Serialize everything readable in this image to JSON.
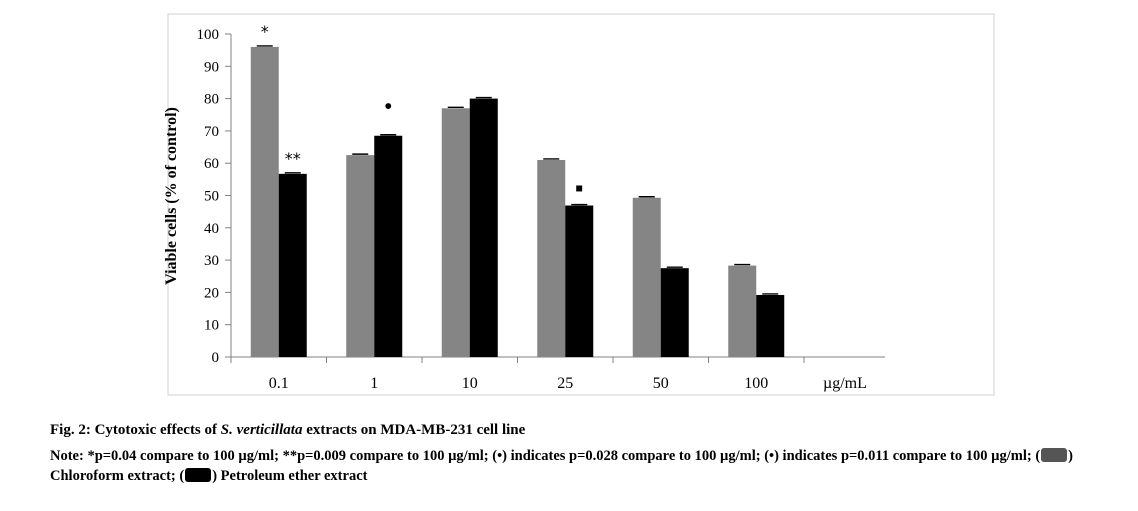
{
  "chart_data": {
    "type": "bar",
    "categories": [
      "0.1",
      "1",
      "10",
      "25",
      "50",
      "100"
    ],
    "series": [
      {
        "name": "Chloroform extract",
        "color": "#858585",
        "values": [
          96,
          62.5,
          77,
          61,
          49.3,
          28.3
        ]
      },
      {
        "name": "Petroleum ether extract",
        "color": "#000000",
        "values": [
          56.7,
          68.5,
          80,
          46.9,
          27.5,
          19.2
        ]
      }
    ],
    "ylabel": "Viable cells (% of control)",
    "xunit": "µg/mL",
    "ylim": [
      0,
      100
    ],
    "yticks": [
      0,
      10,
      20,
      30,
      40,
      50,
      60,
      70,
      80,
      90,
      100
    ],
    "grid": false,
    "annotations": [
      {
        "category": "0.1",
        "series": 0,
        "text": "*"
      },
      {
        "category": "0.1",
        "series": 1,
        "text": "**"
      },
      {
        "category": "1",
        "series": 1,
        "text": "•"
      },
      {
        "category": "25",
        "series": 1,
        "text": "▪"
      }
    ]
  },
  "caption": {
    "label": "Fig. 2:",
    "pre": "Cytotoxic effects of",
    "italic": "S. verticillata",
    "post": "extracts on MDA-MB-231 cell line"
  },
  "note": {
    "part1": "Note: *p=0.04 compare to 100 µg/ml; **p=0.009 compare to 100 µg/ml; (•) indicates p=0.028 compare to 100 µg/ml; (•) indicates p=0.011 compare to 100 µg/ml; (",
    "part2": ") Chloroform extract; (",
    "part3": ") Petroleum ether extract"
  }
}
